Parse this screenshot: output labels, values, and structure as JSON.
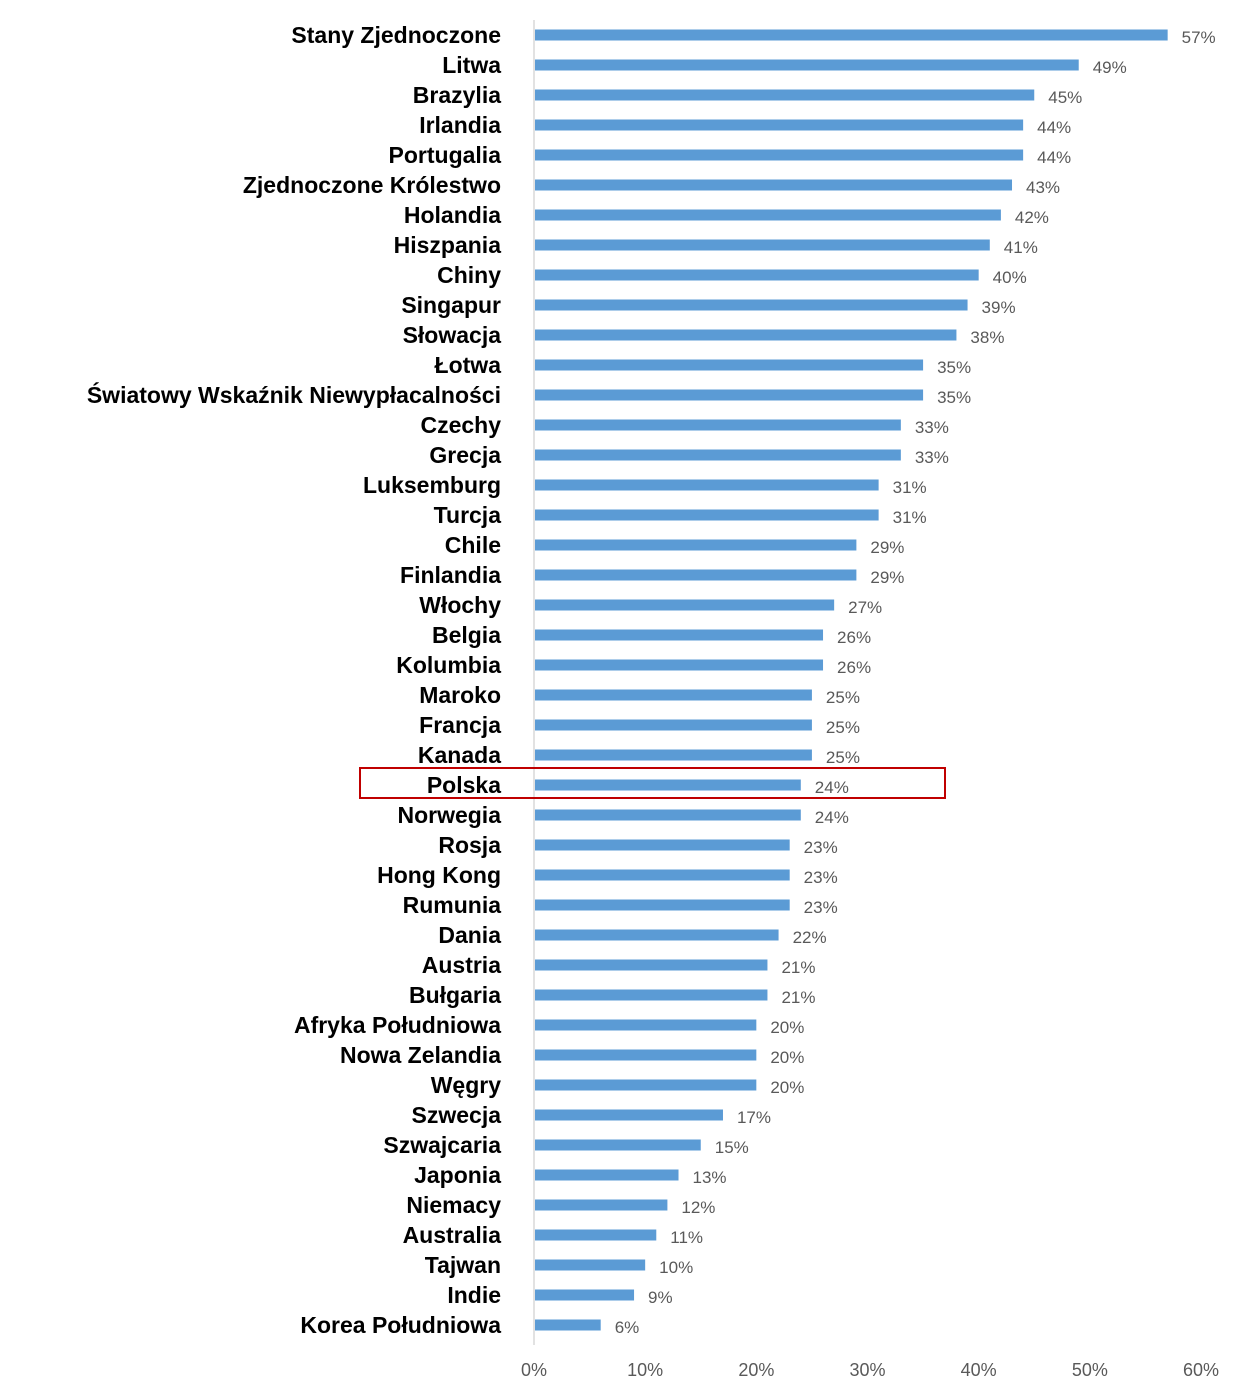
{
  "chart_data": {
    "type": "bar",
    "orientation": "horizontal",
    "title": "",
    "xlabel": "",
    "ylabel": "",
    "xlim": [
      0,
      60
    ],
    "x_ticks": [
      "0%",
      "10%",
      "20%",
      "30%",
      "40%",
      "50%",
      "60%"
    ],
    "grid": false,
    "bar_color": "#5b9bd5",
    "highlight_color": "#c00000",
    "highlighted_category": "Polska",
    "categories": [
      "Stany Zjednoczone",
      "Litwa",
      "Brazylia",
      "Irlandia",
      "Portugalia",
      "Zjednoczone Królestwo",
      "Holandia",
      "Hiszpania",
      "Chiny",
      "Singapur",
      "Słowacja",
      "Łotwa",
      "Światowy Wskaźnik Niewypłacalności",
      "Czechy",
      "Grecja",
      "Luksemburg",
      "Turcja",
      "Chile",
      "Finlandia",
      "Włochy",
      "Belgia",
      "Kolumbia",
      "Maroko",
      "Francja",
      "Kanada",
      "Polska",
      "Norwegia",
      "Rosja",
      "Hong Kong",
      "Rumunia",
      "Dania",
      "Austria",
      "Bułgaria",
      "Afryka Południowa",
      "Nowa Zelandia",
      "Węgry",
      "Szwecja",
      "Szwajcaria",
      "Japonia",
      "Niemacy",
      "Australia",
      "Tajwan",
      "Indie",
      "Korea Południowa"
    ],
    "values": [
      57,
      49,
      45,
      44,
      44,
      43,
      42,
      41,
      40,
      39,
      38,
      35,
      35,
      33,
      33,
      31,
      31,
      29,
      29,
      27,
      26,
      26,
      25,
      25,
      25,
      24,
      24,
      23,
      23,
      23,
      22,
      21,
      21,
      20,
      20,
      20,
      17,
      15,
      13,
      12,
      11,
      10,
      9,
      6
    ],
    "value_labels": [
      "57%",
      "49%",
      "45%",
      "44%",
      "44%",
      "43%",
      "42%",
      "41%",
      "40%",
      "39%",
      "38%",
      "35%",
      "35%",
      "33%",
      "33%",
      "31%",
      "31%",
      "29%",
      "29%",
      "27%",
      "26%",
      "26%",
      "25%",
      "25%",
      "25%",
      "24%",
      "24%",
      "23%",
      "23%",
      "23%",
      "22%",
      "21%",
      "21%",
      "20%",
      "20%",
      "20%",
      "17%",
      "15%",
      "13%",
      "12%",
      "11%",
      "10%",
      "9%",
      "6%"
    ]
  }
}
